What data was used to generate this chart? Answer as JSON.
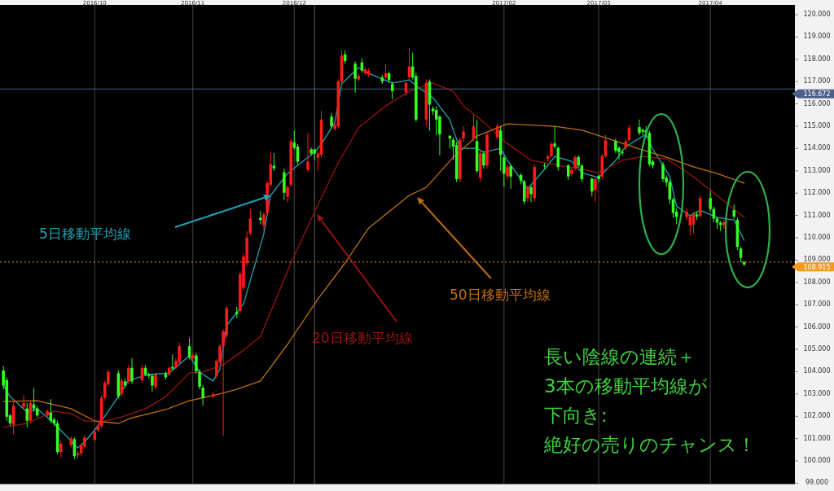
{
  "chart_data": {
    "type": "candlestick",
    "x": [
      "2016-09-06",
      "2016-09-07",
      "2016-09-08",
      "2016-09-09",
      "2016-09-12",
      "2016-09-13",
      "2016-09-14",
      "2016-09-15",
      "2016-09-16",
      "2016-09-19",
      "2016-09-20",
      "2016-09-21",
      "2016-09-22",
      "2016-09-23",
      "2016-09-26",
      "2016-09-27",
      "2016-09-28",
      "2016-09-29",
      "2016-09-30",
      "2016-10-03",
      "2016-10-04",
      "2016-10-05",
      "2016-10-06",
      "2016-10-07",
      "2016-10-10",
      "2016-10-11",
      "2016-10-12",
      "2016-10-13",
      "2016-10-14",
      "2016-10-17",
      "2016-10-18",
      "2016-10-19",
      "2016-10-20",
      "2016-10-21",
      "2016-10-24",
      "2016-10-25",
      "2016-10-26",
      "2016-10-27",
      "2016-10-28",
      "2016-10-31",
      "2016-11-01",
      "2016-11-02",
      "2016-11-03",
      "2016-11-04",
      "2016-11-07",
      "2016-11-08",
      "2016-11-09",
      "2016-11-10",
      "2016-11-11",
      "2016-11-14",
      "2016-11-15",
      "2016-11-16",
      "2016-11-17",
      "2016-11-18",
      "2016-11-21",
      "2016-11-22",
      "2016-11-23",
      "2016-11-24",
      "2016-11-25",
      "2016-11-28",
      "2016-11-29",
      "2016-11-30",
      "2016-12-01",
      "2016-12-02",
      "2016-12-05",
      "2016-12-06",
      "2016-12-07",
      "2016-12-08",
      "2016-12-09",
      "2016-12-12",
      "2016-12-13",
      "2016-12-14",
      "2016-12-15",
      "2016-12-16",
      "2016-12-19",
      "2016-12-20",
      "2016-12-21",
      "2016-12-22",
      "2016-12-23",
      "2016-12-27",
      "2016-12-28",
      "2016-12-29",
      "2016-12-30",
      "2017-01-03",
      "2017-01-04",
      "2017-01-05",
      "2017-01-06",
      "2017-01-09",
      "2017-01-10",
      "2017-01-11",
      "2017-01-12",
      "2017-01-13",
      "2017-01-16",
      "2017-01-17",
      "2017-01-18",
      "2017-01-19",
      "2017-01-20",
      "2017-01-23",
      "2017-01-24",
      "2017-01-25",
      "2017-01-26",
      "2017-01-27",
      "2017-01-30",
      "2017-01-31",
      "2017-02-01",
      "2017-02-02",
      "2017-02-03",
      "2017-02-06",
      "2017-02-07",
      "2017-02-08",
      "2017-02-09",
      "2017-02-10",
      "2017-02-13",
      "2017-02-14",
      "2017-02-15",
      "2017-02-16",
      "2017-02-17",
      "2017-02-20",
      "2017-02-21",
      "2017-02-22",
      "2017-02-23",
      "2017-02-24",
      "2017-02-27",
      "2017-02-28",
      "2017-03-01",
      "2017-03-02",
      "2017-03-03",
      "2017-03-06",
      "2017-03-07",
      "2017-03-08",
      "2017-03-09",
      "2017-03-10",
      "2017-03-13",
      "2017-03-14",
      "2017-03-15",
      "2017-03-16",
      "2017-03-17",
      "2017-03-20",
      "2017-03-21",
      "2017-03-22",
      "2017-03-23",
      "2017-03-24",
      "2017-03-27",
      "2017-03-28",
      "2017-03-29",
      "2017-03-30",
      "2017-03-31",
      "2017-04-03",
      "2017-04-04",
      "2017-04-05",
      "2017-04-06",
      "2017-04-07",
      "2017-04-10",
      "2017-04-11",
      "2017-04-12",
      "2017-04-13"
    ],
    "ohlc": [
      [
        104.05,
        104.25,
        103.2,
        103.38
      ],
      [
        103.62,
        103.75,
        101.8,
        101.98
      ],
      [
        102.04,
        102.1,
        101.55,
        101.68
      ],
      [
        101.62,
        102.65,
        101.19,
        102.47
      ],
      [
        102.41,
        102.96,
        102.3,
        102.59
      ],
      [
        102.35,
        102.59,
        101.5,
        101.8
      ],
      [
        101.8,
        102.7,
        101.7,
        102.59
      ],
      [
        102.53,
        103.26,
        102.2,
        102.35
      ],
      [
        102.35,
        102.45,
        101.95,
        102.04
      ],
      [
        102.04,
        102.3,
        101.95,
        102.23
      ],
      [
        102.16,
        102.77,
        101.7,
        101.8
      ],
      [
        101.86,
        101.95,
        101.55,
        101.68
      ],
      [
        101.68,
        101.8,
        100.3,
        100.4
      ],
      [
        100.4,
        100.9,
        100.15,
        100.77
      ],
      [
        100.7,
        101.1,
        100.6,
        101.01
      ],
      [
        100.97,
        101.05,
        100.1,
        100.22
      ],
      [
        100.26,
        100.45,
        100.1,
        100.34
      ],
      [
        100.34,
        100.8,
        100.2,
        100.7
      ],
      [
        100.64,
        101.15,
        100.55,
        101.05
      ],
      [
        100.95,
        101.4,
        100.85,
        101.31
      ],
      [
        101.37,
        101.7,
        101.3,
        101.58
      ],
      [
        101.56,
        102.95,
        101.45,
        102.83
      ],
      [
        102.83,
        103.6,
        102.7,
        103.5
      ],
      [
        103.44,
        104.1,
        103.35,
        103.99
      ],
      [
        103.93,
        104.05,
        102.8,
        102.9
      ],
      [
        103.02,
        103.7,
        102.9,
        103.6
      ],
      [
        103.56,
        103.7,
        103.3,
        103.38
      ],
      [
        103.56,
        104.3,
        103.45,
        104.17
      ],
      [
        104.17,
        104.6,
        103.45,
        103.56
      ],
      [
        103.62,
        104.3,
        103.5,
        104.17
      ],
      [
        104.17,
        104.3,
        103.8,
        103.87
      ],
      [
        103.87,
        103.95,
        103.7,
        103.81
      ],
      [
        103.81,
        103.9,
        103.1,
        103.38
      ],
      [
        103.32,
        103.95,
        103.2,
        103.87
      ],
      [
        103.9,
        104.0,
        103.65,
        103.75
      ],
      [
        103.87,
        104.25,
        103.8,
        104.17
      ],
      [
        104.21,
        104.78,
        104.05,
        104.14
      ],
      [
        104.17,
        104.6,
        104.1,
        104.48
      ],
      [
        104.42,
        105.3,
        104.35,
        105.14
      ],
      [
        105.14,
        105.51,
        104.55,
        104.66
      ],
      [
        104.6,
        104.85,
        104.5,
        104.74
      ],
      [
        104.72,
        104.85,
        103.9,
        104.01
      ],
      [
        103.99,
        104.1,
        103.2,
        103.32
      ],
      [
        103.28,
        103.4,
        102.47,
        102.83
      ],
      [
        102.89,
        103.1,
        102.8,
        102.99
      ],
      [
        103.81,
        104.55,
        103.7,
        104.48
      ],
      [
        104.42,
        105.25,
        104.35,
        105.14
      ],
      [
        105.14,
        105.9,
        101.13,
        105.81
      ],
      [
        105.63,
        106.95,
        105.5,
        106.85
      ],
      [
        106.67,
        106.9,
        106.4,
        106.58
      ],
      [
        106.73,
        108.5,
        106.6,
        108.37
      ],
      [
        107.76,
        109.3,
        107.65,
        109.16
      ],
      [
        108.86,
        110.3,
        108.75,
        110.01
      ],
      [
        110.2,
        111.3,
        110.1,
        110.86
      ],
      [
        110.9,
        111.2,
        110.6,
        110.8
      ],
      [
        110.56,
        111.15,
        110.3,
        111.05
      ],
      [
        111.11,
        112.55,
        111.0,
        112.45
      ],
      [
        112.38,
        113.85,
        112.3,
        113.3
      ],
      [
        113.23,
        113.8,
        113.0,
        113.11
      ],
      [
        112.93,
        113.1,
        111.7,
        112.02
      ],
      [
        111.84,
        112.35,
        111.6,
        112.26
      ],
      [
        112.38,
        114.45,
        112.3,
        114.33
      ],
      [
        114.27,
        114.8,
        113.95,
        114.03
      ],
      [
        114.09,
        114.2,
        113.3,
        113.42
      ],
      [
        113.05,
        114.7,
        112.95,
        113.42
      ],
      [
        113.96,
        114.05,
        113.7,
        113.78
      ],
      [
        113.96,
        114.0,
        113.5,
        113.78
      ],
      [
        113.6,
        113.9,
        113.0,
        113.78
      ],
      [
        113.72,
        115.7,
        113.6,
        115.3
      ],
      [
        115.43,
        115.6,
        114.9,
        115.0
      ],
      [
        114.88,
        115.15,
        114.8,
        115.06
      ],
      [
        115.0,
        117.1,
        114.9,
        117.01
      ],
      [
        117.01,
        118.4,
        116.9,
        118.16
      ],
      [
        118.22,
        118.4,
        117.8,
        117.92
      ],
      [
        117.8,
        117.9,
        116.5,
        117.13
      ],
      [
        117.1,
        117.35,
        117.0,
        117.25
      ],
      [
        117.86,
        118.05,
        117.4,
        117.5
      ],
      [
        117.37,
        117.65,
        117.3,
        117.55
      ],
      [
        117.31,
        117.6,
        117.2,
        117.49
      ],
      [
        117.19,
        117.3,
        116.9,
        117.01
      ],
      [
        117.19,
        117.8,
        117.1,
        117.37
      ],
      [
        117.37,
        117.45,
        116.95,
        117.07
      ],
      [
        116.89,
        117.0,
        116.2,
        116.58
      ],
      [
        116.52,
        117.0,
        116.35,
        116.95
      ],
      [
        117.19,
        118.5,
        117.1,
        117.68
      ],
      [
        117.68,
        118.3,
        117.1,
        117.19
      ],
      [
        117.25,
        117.4,
        115.2,
        115.3
      ],
      [
        115.3,
        117.1,
        115.0,
        116.95
      ],
      [
        117.01,
        117.1,
        114.8,
        115.97
      ],
      [
        115.79,
        115.9,
        115.5,
        115.67
      ],
      [
        115.73,
        115.9,
        114.6,
        115.3
      ],
      [
        115.43,
        115.5,
        113.7,
        114.64
      ],
      [
        114.57,
        114.6,
        114.0,
        114.45
      ],
      [
        114.39,
        114.5,
        113.5,
        114.09
      ],
      [
        114.15,
        114.3,
        112.5,
        112.63
      ],
      [
        112.63,
        114.5,
        112.5,
        114.39
      ],
      [
        114.45,
        115.0,
        114.3,
        114.76
      ],
      [
        114.45,
        115.5,
        114.35,
        115.0
      ],
      [
        114.33,
        115.3,
        112.9,
        112.99
      ],
      [
        112.69,
        113.9,
        112.5,
        113.78
      ],
      [
        113.78,
        113.9,
        113.1,
        113.24
      ],
      [
        113.24,
        114.7,
        113.1,
        114.63
      ],
      [
        114.51,
        115.1,
        114.4,
        115.0
      ],
      [
        114.82,
        115.0,
        113.0,
        113.72
      ],
      [
        113.6,
        113.7,
        112.3,
        112.87
      ],
      [
        112.75,
        113.3,
        112.6,
        113.17
      ],
      [
        113.21,
        113.3,
        112.2,
        112.75
      ],
      [
        112.81,
        112.9,
        112.4,
        112.57
      ],
      [
        112.53,
        112.6,
        111.5,
        111.63
      ],
      [
        111.78,
        112.35,
        111.6,
        112.26
      ],
      [
        112.26,
        112.35,
        111.6,
        111.96
      ],
      [
        111.78,
        113.3,
        111.6,
        113.17
      ],
      [
        113.24,
        113.35,
        113.1,
        113.21
      ],
      [
        113.54,
        113.75,
        113.4,
        113.66
      ],
      [
        113.66,
        114.3,
        113.6,
        114.21
      ],
      [
        114.23,
        115.0,
        114.0,
        114.09
      ],
      [
        114.03,
        114.1,
        113.0,
        113.17
      ],
      [
        113.24,
        113.3,
        112.6,
        112.75
      ],
      [
        112.87,
        113.15,
        112.75,
        113.05
      ],
      [
        113.12,
        113.7,
        113.0,
        113.6
      ],
      [
        113.62,
        113.7,
        113.15,
        113.24
      ],
      [
        113.24,
        113.3,
        112.5,
        112.63
      ],
      [
        112.65,
        112.7,
        111.85,
        112.08
      ],
      [
        112.14,
        112.7,
        111.6,
        112.63
      ],
      [
        112.77,
        112.85,
        112.5,
        112.63
      ],
      [
        112.75,
        113.75,
        112.6,
        113.66
      ],
      [
        113.66,
        114.6,
        113.6,
        114.36
      ],
      [
        114.33,
        114.45,
        113.8,
        113.9
      ],
      [
        114.03,
        114.1,
        113.5,
        113.84
      ],
      [
        113.84,
        113.95,
        113.7,
        113.82
      ],
      [
        114.03,
        114.45,
        113.9,
        114.33
      ],
      [
        114.39,
        115.05,
        114.3,
        114.94
      ],
      [
        114.96,
        115.3,
        114.6,
        114.7
      ],
      [
        114.84,
        114.9,
        114.6,
        114.76
      ],
      [
        114.82,
        115.0,
        114.5,
        114.7
      ],
      [
        114.7,
        114.8,
        113.2,
        113.3
      ],
      [
        113.42,
        113.5,
        113.1,
        113.24
      ],
      [
        113.3,
        113.4,
        112.5,
        112.63
      ],
      [
        112.69,
        112.8,
        112.3,
        112.48
      ],
      [
        112.5,
        112.6,
        111.5,
        111.72
      ],
      [
        111.72,
        111.8,
        110.9,
        111.11
      ],
      [
        111.17,
        111.3,
        110.6,
        110.93
      ],
      [
        110.93,
        111.3,
        110.8,
        111.17
      ],
      [
        110.56,
        111.05,
        110.1,
        110.95
      ],
      [
        110.58,
        111.15,
        110.2,
        111.05
      ],
      [
        111.05,
        111.15,
        110.8,
        110.95
      ],
      [
        110.98,
        111.9,
        110.9,
        111.78
      ],
      [
        111.78,
        112.1,
        111.2,
        111.29
      ],
      [
        111.29,
        111.4,
        110.7,
        110.86
      ],
      [
        110.86,
        110.95,
        110.4,
        110.68
      ],
      [
        110.68,
        110.75,
        110.3,
        110.58
      ],
      [
        110.56,
        110.8,
        110.4,
        110.7
      ],
      [
        111.23,
        111.5,
        110.85,
        110.95
      ],
      [
        110.8,
        110.9,
        109.45,
        109.59
      ],
      [
        109.52,
        109.6,
        108.9,
        109.1
      ],
      [
        108.92,
        108.95,
        108.75,
        108.8
      ]
    ],
    "series": [
      {
        "type": "line",
        "name": "5日移動平均線",
        "color": "#1fa3b5",
        "x": [
          "2016-09-06",
          "2016-09-08",
          "2016-09-13",
          "2016-09-16",
          "2016-09-21",
          "2016-09-28",
          "2016-09-30",
          "2016-10-04",
          "2016-10-10",
          "2016-10-13",
          "2016-10-19",
          "2016-10-25",
          "2016-10-31",
          "2016-11-03",
          "2016-11-07",
          "2016-11-09",
          "2016-11-11",
          "2016-11-16",
          "2016-11-22",
          "2016-11-24",
          "2016-11-29",
          "2016-12-02",
          "2016-12-07",
          "2016-12-09",
          "2016-12-13",
          "2016-12-15",
          "2016-12-20",
          "2016-12-23",
          "2016-12-30",
          "2017-01-04",
          "2017-01-06",
          "2017-01-11",
          "2017-01-16",
          "2017-01-17",
          "2017-01-19",
          "2017-01-24",
          "2017-01-26",
          "2017-01-31",
          "2017-02-02",
          "2017-02-08",
          "2017-02-14",
          "2017-02-16",
          "2017-02-21",
          "2017-02-24",
          "2017-03-01",
          "2017-03-06",
          "2017-03-09",
          "2017-03-15",
          "2017-03-17",
          "2017-03-22",
          "2017-03-24",
          "2017-03-28",
          "2017-03-31",
          "2017-04-05",
          "2017-04-10",
          "2017-04-13"
        ],
        "values": [
          103.39,
          102.88,
          102.19,
          102.34,
          101.68,
          100.58,
          100.84,
          101.57,
          102.88,
          103.61,
          103.87,
          103.94,
          104.71,
          103.98,
          103.58,
          104.12,
          106.06,
          107.04,
          110.18,
          111.9,
          112.88,
          113.25,
          113.83,
          114.2,
          115.18,
          116.9,
          117.63,
          117.37,
          116.93,
          117.08,
          116.82,
          116.28,
          115.29,
          114.82,
          114.01,
          114.01,
          113.83,
          114.01,
          113.47,
          112.19,
          113.25,
          113.65,
          113.43,
          112.92,
          112.7,
          113.47,
          114.09,
          114.64,
          113.98,
          112.74,
          111.42,
          110.99,
          111.24,
          110.91,
          110.8,
          109.89
        ]
      },
      {
        "type": "line",
        "name": "20日移動平均線",
        "color": "#9a1414",
        "x": [
          "2016-09-06",
          "2016-09-13",
          "2016-09-21",
          "2016-09-26",
          "2016-09-30",
          "2016-10-05",
          "2016-10-11",
          "2016-10-18",
          "2016-10-24",
          "2016-10-31",
          "2016-11-04",
          "2016-11-10",
          "2016-11-16",
          "2016-11-21",
          "2016-11-30",
          "2016-12-07",
          "2016-12-14",
          "2016-12-20",
          "2016-12-28",
          "2017-01-04",
          "2017-01-11",
          "2017-01-17",
          "2017-01-20",
          "2017-01-26",
          "2017-02-01",
          "2017-02-09",
          "2017-02-16",
          "2017-02-24",
          "2017-03-01",
          "2017-03-08",
          "2017-03-14",
          "2017-03-21",
          "2017-03-29",
          "2017-04-05",
          "2017-04-13"
        ],
        "values": [
          101.5,
          101.68,
          102.23,
          102.12,
          101.79,
          101.75,
          101.97,
          102.34,
          102.88,
          103.94,
          103.98,
          104.31,
          104.96,
          105.58,
          108.87,
          111.17,
          113.36,
          114.93,
          115.91,
          116.57,
          116.93,
          116.57,
          115.91,
          115.18,
          114.34,
          113.47,
          113.28,
          113.07,
          112.92,
          113.47,
          113.65,
          113.54,
          112.74,
          111.9,
          110.91
        ]
      },
      {
        "type": "line",
        "name": "50日移動平均線",
        "color": "#c07010",
        "x": [
          "2016-09-06",
          "2016-09-16",
          "2016-09-26",
          "2016-10-03",
          "2016-10-10",
          "2016-10-14",
          "2016-10-24",
          "2016-10-31",
          "2016-11-08",
          "2016-11-14",
          "2016-11-21",
          "2016-11-29",
          "2016-12-08",
          "2016-12-16",
          "2016-12-23",
          "2017-01-04",
          "2017-01-09",
          "2017-01-17",
          "2017-01-24",
          "2017-02-02",
          "2017-02-16",
          "2017-02-24",
          "2017-03-06",
          "2017-03-13",
          "2017-03-21",
          "2017-03-29",
          "2017-04-05",
          "2017-04-13"
        ],
        "values": [
          102.66,
          102.7,
          102.34,
          101.79,
          101.68,
          101.93,
          102.3,
          102.7,
          102.96,
          103.21,
          103.58,
          105.22,
          107.26,
          108.87,
          110.44,
          111.9,
          112.26,
          113.61,
          114.56,
          115.11,
          115.0,
          114.82,
          114.34,
          113.98,
          113.61,
          113.18,
          112.88,
          112.45
        ]
      }
    ],
    "xlim": [
      "2016-09-05",
      "2017-04-28"
    ],
    "ylim": [
      98.96,
      120.44
    ],
    "xticks": [
      {
        "value": "2016-10-03",
        "label": "2016/10"
      },
      {
        "value": "2016-11-01",
        "label": "2016/11"
      },
      {
        "value": "2016-12-01",
        "label": "2016/12"
      },
      {
        "value": "2017-02-01",
        "label": "2017/02"
      },
      {
        "value": "2017-03-01",
        "label": "2017/03"
      },
      {
        "value": "2017-04-03",
        "label": "2017/04"
      }
    ],
    "yticks": [
      {
        "value": 99,
        "label": "99.000"
      },
      {
        "value": 100,
        "label": "100.000"
      },
      {
        "value": 101,
        "label": "101.000"
      },
      {
        "value": 102,
        "label": "102.000"
      },
      {
        "value": 103,
        "label": "103.000"
      },
      {
        "value": 104,
        "label": "104.000"
      },
      {
        "value": 105,
        "label": "105.000"
      },
      {
        "value": 106,
        "label": "106.000"
      },
      {
        "value": 107,
        "label": "107.000"
      },
      {
        "value": 108,
        "label": "108.000"
      },
      {
        "value": 109,
        "label": "109.000"
      },
      {
        "value": 110,
        "label": "110.000"
      },
      {
        "value": 111,
        "label": "111.000"
      },
      {
        "value": 112,
        "label": "112.000"
      },
      {
        "value": 113,
        "label": "113.000"
      },
      {
        "value": 114,
        "label": "114.000"
      },
      {
        "value": 115,
        "label": "115.000"
      },
      {
        "value": 116,
        "label": "116.000"
      },
      {
        "value": 117,
        "label": "117.000"
      },
      {
        "value": 118,
        "label": "118.000"
      },
      {
        "value": 119,
        "label": "119.000"
      },
      {
        "value": 120,
        "label": "120.000"
      }
    ],
    "grid": "x",
    "ref_lines": [
      {
        "axis": "y",
        "value": 116.672,
        "label": "116.672",
        "color": "#4a5f8a",
        "line_style": "solid"
      },
      {
        "axis": "y",
        "value": 108.915,
        "label": "108.915",
        "color": "#f39a1e",
        "line_style": "dotted"
      },
      {
        "axis": "x",
        "value": "2016-12-07",
        "color": "#555555",
        "line_style": "solid"
      }
    ],
    "annotations": [
      "長い陰線の連続＋",
      "3本の移動平均線が",
      "下向き:",
      "絶好の売りのチャンス！"
    ]
  }
}
